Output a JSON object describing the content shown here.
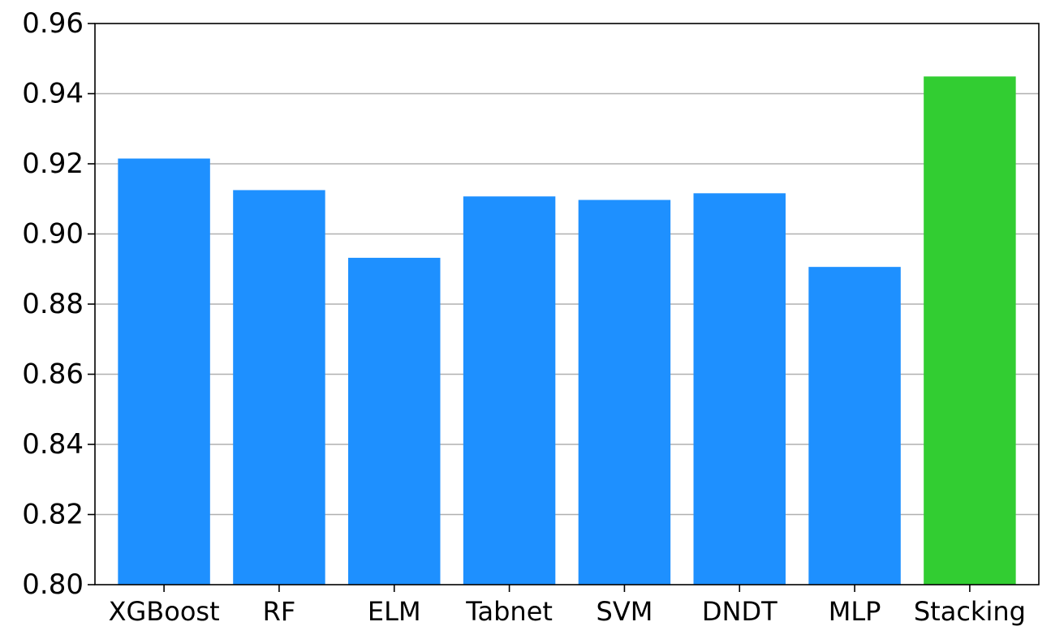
{
  "chart_data": {
    "type": "bar",
    "categories": [
      "XGBoost",
      "RF",
      "ELM",
      "Tabnet",
      "SVM",
      "DNDT",
      "MLP",
      "Stacking"
    ],
    "values": [
      0.9215,
      0.9125,
      0.8932,
      0.9107,
      0.9097,
      0.9116,
      0.8906,
      0.9449
    ],
    "colors": [
      "#1e90ff",
      "#1e90ff",
      "#1e90ff",
      "#1e90ff",
      "#1e90ff",
      "#1e90ff",
      "#1e90ff",
      "#32cd32"
    ],
    "title": "",
    "xlabel": "",
    "ylabel": "",
    "ylim": [
      0.8,
      0.96
    ],
    "yticks": [
      "0.80",
      "0.82",
      "0.84",
      "0.86",
      "0.88",
      "0.90",
      "0.92",
      "0.94",
      "0.96"
    ],
    "grid": "y",
    "legend": "none"
  }
}
